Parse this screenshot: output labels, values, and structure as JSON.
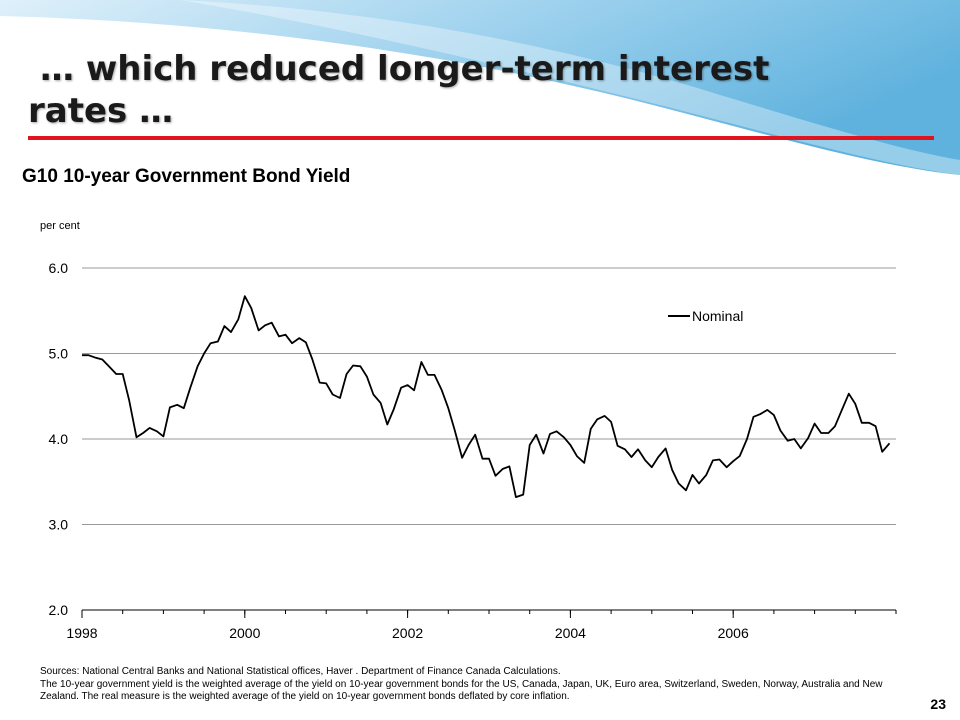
{
  "slide": {
    "title_line1": "… which reduced longer-term interest",
    "title_line2": "rates …",
    "page_number": "23",
    "sources_line1": "Sources: National Central Banks and National Statistical offices, Haver . Department of Finance Canada Calculations.",
    "sources_line2": "The 10-year government yield is the weighted average of the yield on 10-year government bonds for the US, Canada, Japan, UK, Euro area, Switzerland, Sweden, Norway, Australia and New Zealand. The real measure is the weighted average of the yield on 10-year government bonds deflated by core inflation.",
    "colors": {
      "accent_rule": "#e0141e",
      "background_swoosh": "#7fbfe0"
    }
  },
  "chart_data": {
    "type": "line",
    "title": "G10 10-year Government Bond Yield",
    "ylabel": "per cent",
    "xlabel": "",
    "ylim": [
      2.0,
      6.0
    ],
    "yticks": [
      "2.0",
      "3.0",
      "4.0",
      "5.0",
      "6.0"
    ],
    "xlim": [
      1998,
      2008
    ],
    "xticks": [
      "1998",
      "2000",
      "2002",
      "2004",
      "2006"
    ],
    "grid": "horizontal",
    "legend": "upper-right",
    "series": [
      {
        "name": "Nominal",
        "color": "#000000",
        "x": [
          1998.0,
          1998.08,
          1998.17,
          1998.25,
          1998.33,
          1998.42,
          1998.5,
          1998.58,
          1998.67,
          1998.75,
          1998.83,
          1998.92,
          1999.0,
          1999.08,
          1999.17,
          1999.25,
          1999.33,
          1999.42,
          1999.5,
          1999.58,
          1999.67,
          1999.75,
          1999.83,
          1999.92,
          2000.0,
          2000.08,
          2000.17,
          2000.25,
          2000.33,
          2000.42,
          2000.5,
          2000.58,
          2000.67,
          2000.75,
          2000.83,
          2000.92,
          2001.0,
          2001.08,
          2001.17,
          2001.25,
          2001.33,
          2001.42,
          2001.5,
          2001.58,
          2001.67,
          2001.75,
          2001.83,
          2001.92,
          2002.0,
          2002.08,
          2002.17,
          2002.25,
          2002.33,
          2002.42,
          2002.5,
          2002.58,
          2002.67,
          2002.75,
          2002.83,
          2002.92,
          2003.0,
          2003.08,
          2003.17,
          2003.25,
          2003.33,
          2003.42,
          2003.5,
          2003.58,
          2003.67,
          2003.75,
          2003.83,
          2003.92,
          2004.0,
          2004.08,
          2004.17,
          2004.25,
          2004.33,
          2004.42,
          2004.5,
          2004.58,
          2004.67,
          2004.75,
          2004.83,
          2004.92,
          2005.0,
          2005.08,
          2005.17,
          2005.25,
          2005.33,
          2005.42,
          2005.5,
          2005.58,
          2005.67,
          2005.75,
          2005.83,
          2005.92,
          2006.0,
          2006.08,
          2006.17,
          2006.25,
          2006.33,
          2006.42,
          2006.5,
          2006.58,
          2006.67,
          2006.75,
          2006.83,
          2006.92,
          2007.0,
          2007.08,
          2007.17,
          2007.25,
          2007.33,
          2007.42,
          2007.5,
          2007.58,
          2007.67,
          2007.75,
          2007.83,
          2007.92
        ],
        "values": [
          4.98,
          4.98,
          4.95,
          4.93,
          4.85,
          4.76,
          4.76,
          4.45,
          4.02,
          4.07,
          4.13,
          4.09,
          4.03,
          4.37,
          4.4,
          4.36,
          4.6,
          4.85,
          5.0,
          5.12,
          5.14,
          5.32,
          5.25,
          5.4,
          5.67,
          5.53,
          5.27,
          5.33,
          5.36,
          5.2,
          5.22,
          5.12,
          5.18,
          5.13,
          4.93,
          4.66,
          4.65,
          4.52,
          4.48,
          4.76,
          4.86,
          4.85,
          4.73,
          4.52,
          4.42,
          4.17,
          4.35,
          4.6,
          4.63,
          4.57,
          4.9,
          4.75,
          4.75,
          4.57,
          4.36,
          4.1,
          3.78,
          3.93,
          4.05,
          3.77,
          3.77,
          3.57,
          3.65,
          3.68,
          3.32,
          3.35,
          3.93,
          4.05,
          3.83,
          4.06,
          4.09,
          4.02,
          3.93,
          3.8,
          3.72,
          4.12,
          4.23,
          4.27,
          4.2,
          3.92,
          3.88,
          3.79,
          3.88,
          3.75,
          3.67,
          3.79,
          3.89,
          3.64,
          3.48,
          3.4,
          3.58,
          3.48,
          3.58,
          3.75,
          3.76,
          3.67,
          3.74,
          3.8,
          4.0,
          4.26,
          4.29,
          4.34,
          4.28,
          4.1,
          3.98,
          4.0,
          3.89,
          4.01,
          4.18,
          4.07,
          4.07,
          4.15,
          4.33,
          4.53,
          4.41,
          4.19,
          4.19,
          4.15,
          3.85,
          3.95
        ]
      }
    ]
  }
}
